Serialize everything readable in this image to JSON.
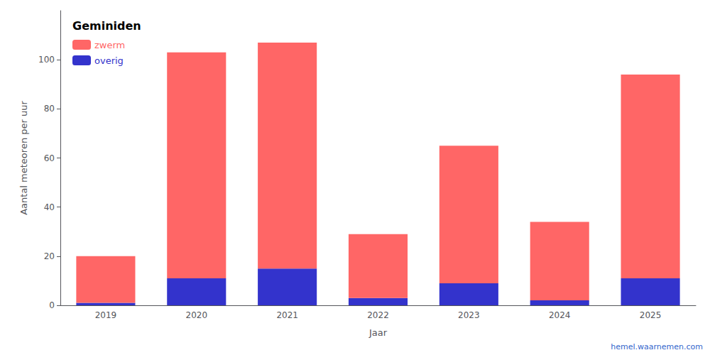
{
  "chart_data": {
    "type": "bar",
    "stacked": true,
    "title": "Geminiden",
    "xlabel": "Jaar",
    "ylabel": "Aantal meteoren per uur",
    "categories": [
      "2019",
      "2020",
      "2021",
      "2022",
      "2023",
      "2024",
      "2025"
    ],
    "series": [
      {
        "name": "overig",
        "color": "#3333CC",
        "values": [
          1,
          11,
          15,
          3,
          9,
          2,
          11
        ]
      },
      {
        "name": "zwerm",
        "color": "#FF6666",
        "values": [
          19,
          92,
          92,
          26,
          56,
          32,
          83
        ]
      }
    ],
    "ylim": [
      0,
      120
    ],
    "yticks": [
      0,
      20,
      40,
      60,
      80,
      100
    ],
    "grid": false,
    "legend": "upper left",
    "annotations": [
      {
        "text": "hemel.waarnemen.com",
        "color": "#3366CC"
      }
    ]
  }
}
